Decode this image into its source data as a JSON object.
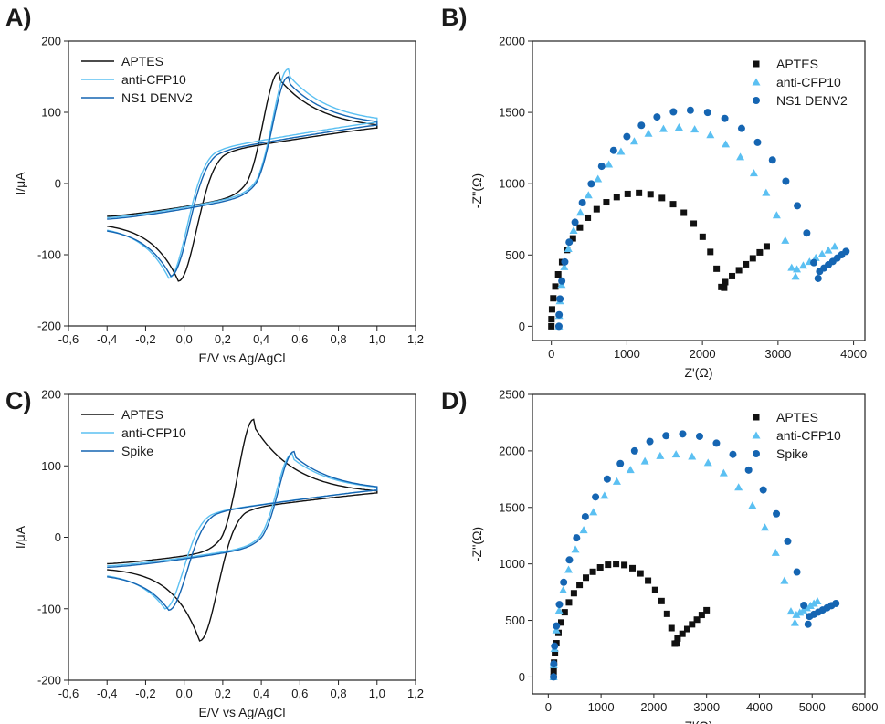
{
  "figure": {
    "colors": {
      "black": "#111111",
      "light": "#5bc0f2",
      "dark": "#1565b2",
      "axis": "#222222"
    }
  },
  "chart_data": [
    {
      "panel": "A)",
      "type": "line",
      "subtype": "cyclic-voltammogram",
      "xlabel": "E/V vs Ag/AgCl",
      "ylabel": "I/μA",
      "xlim": [
        -0.6,
        1.2
      ],
      "ylim": [
        -200,
        200
      ],
      "xticks": [
        "-0,6",
        "-0,4",
        "-0,2",
        "0,0",
        "0,2",
        "0,4",
        "0,6",
        "0,8",
        "1,0",
        "1,2"
      ],
      "yticks": [
        "-200",
        "-100",
        "0",
        "100",
        "200"
      ],
      "legend_position": "top-left",
      "series": [
        {
          "name": "APTES",
          "color": "#111111",
          "start": [
            -0.4,
            -46
          ],
          "anodic_peak": [
            0.49,
            156
          ],
          "vertex": [
            1.0,
            78
          ],
          "cathodic_peak": [
            -0.03,
            -137
          ],
          "end": [
            -0.4,
            -54
          ]
        },
        {
          "name": "anti-CFP10",
          "color": "#5bc0f2",
          "start": [
            -0.4,
            -48
          ],
          "anodic_peak": [
            0.54,
            161
          ],
          "vertex": [
            1.0,
            86
          ],
          "cathodic_peak": [
            -0.08,
            -133
          ],
          "end": [
            -0.4,
            -58
          ]
        },
        {
          "name": "NS1 DENV2",
          "color": "#1565b2",
          "start": [
            -0.4,
            -50
          ],
          "anodic_peak": [
            0.54,
            150
          ],
          "vertex": [
            1.0,
            82
          ],
          "cathodic_peak": [
            -0.07,
            -130
          ],
          "end": [
            -0.4,
            -60
          ]
        }
      ]
    },
    {
      "panel": "B)",
      "type": "scatter",
      "subtype": "nyquist",
      "xlabel": "Z'(Ω)",
      "ylabel": "-Z''(Ω)",
      "xlim": [
        -250,
        4150
      ],
      "ylim": [
        -100,
        2000
      ],
      "xticks": [
        0,
        1000,
        2000,
        3000,
        4000
      ],
      "yticks": [
        0,
        500,
        1000,
        1500,
        2000
      ],
      "legend_position": "top-right",
      "series": [
        {
          "name": "APTES",
          "marker": "square",
          "color": "#111111",
          "start": [
            0,
            0
          ],
          "arc_end": 2300,
          "peak": 935,
          "min": 310,
          "end": [
            2850,
            560
          ]
        },
        {
          "name": "anti-CFP10",
          "marker": "triangle",
          "color": "#5bc0f2",
          "start": [
            100,
            0
          ],
          "arc_end": 3250,
          "peak": 1395,
          "min": 400,
          "end": [
            3750,
            560
          ]
        },
        {
          "name": "NS1 DENV2",
          "marker": "circle",
          "color": "#1565b2",
          "start": [
            100,
            0
          ],
          "arc_end": 3550,
          "peak": 1515,
          "min": 385,
          "end": [
            3900,
            525
          ]
        }
      ]
    },
    {
      "panel": "C)",
      "type": "line",
      "subtype": "cyclic-voltammogram",
      "xlabel": "E/V vs Ag/AgCl",
      "ylabel": "I/μA",
      "xlim": [
        -0.6,
        1.2
      ],
      "ylim": [
        -200,
        200
      ],
      "xticks": [
        "-0,6",
        "-0,4",
        "-0,2",
        "0,0",
        "0,2",
        "0,4",
        "0,6",
        "0,8",
        "1,0",
        "1,2"
      ],
      "yticks": [
        "-200",
        "-100",
        "0",
        "100",
        "200"
      ],
      "legend_position": "top-left",
      "series": [
        {
          "name": "APTES",
          "color": "#111111",
          "start": [
            -0.4,
            -37
          ],
          "anodic_peak": [
            0.36,
            165
          ],
          "vertex": [
            1.0,
            62
          ],
          "cathodic_peak": [
            0.08,
            -145
          ],
          "end": [
            -0.4,
            -42
          ]
        },
        {
          "name": "anti-CFP10",
          "color": "#5bc0f2",
          "start": [
            -0.4,
            -40
          ],
          "anodic_peak": [
            0.56,
            117
          ],
          "vertex": [
            1.0,
            66
          ],
          "cathodic_peak": [
            -0.1,
            -100
          ],
          "end": [
            -0.4,
            -48
          ]
        },
        {
          "name": "Spike",
          "color": "#1565b2",
          "start": [
            -0.4,
            -42
          ],
          "anodic_peak": [
            0.57,
            120
          ],
          "vertex": [
            1.0,
            66
          ],
          "cathodic_peak": [
            -0.08,
            -102
          ],
          "end": [
            -0.4,
            -50
          ]
        }
      ]
    },
    {
      "panel": "D)",
      "type": "scatter",
      "subtype": "nyquist",
      "xlabel": "Z'(Ω)",
      "ylabel": "-Z''(Ω)",
      "xlim": [
        -300,
        6000
      ],
      "ylim": [
        -150,
        2500
      ],
      "xticks": [
        0,
        1000,
        2000,
        3000,
        4000,
        5000,
        6000
      ],
      "yticks": [
        0,
        500,
        1000,
        1500,
        2000,
        2500
      ],
      "legend_position": "top-right",
      "series": [
        {
          "name": "APTES",
          "marker": "square",
          "color": "#111111",
          "start": [
            100,
            0
          ],
          "arc_end": 2450,
          "peak": 1000,
          "min": 340,
          "end": [
            3000,
            590
          ]
        },
        {
          "name": "anti-CFP10",
          "marker": "triangle",
          "color": "#5bc0f2",
          "start": [
            100,
            0
          ],
          "arc_end": 4700,
          "peak": 1970,
          "min": 550,
          "end": [
            5100,
            670
          ]
        },
        {
          "name": "Spike",
          "marker": "circle",
          "color": "#1565b2",
          "start": [
            100,
            0
          ],
          "arc_end": 4950,
          "peak": 2150,
          "min": 535,
          "end": [
            5450,
            650
          ]
        }
      ]
    }
  ]
}
